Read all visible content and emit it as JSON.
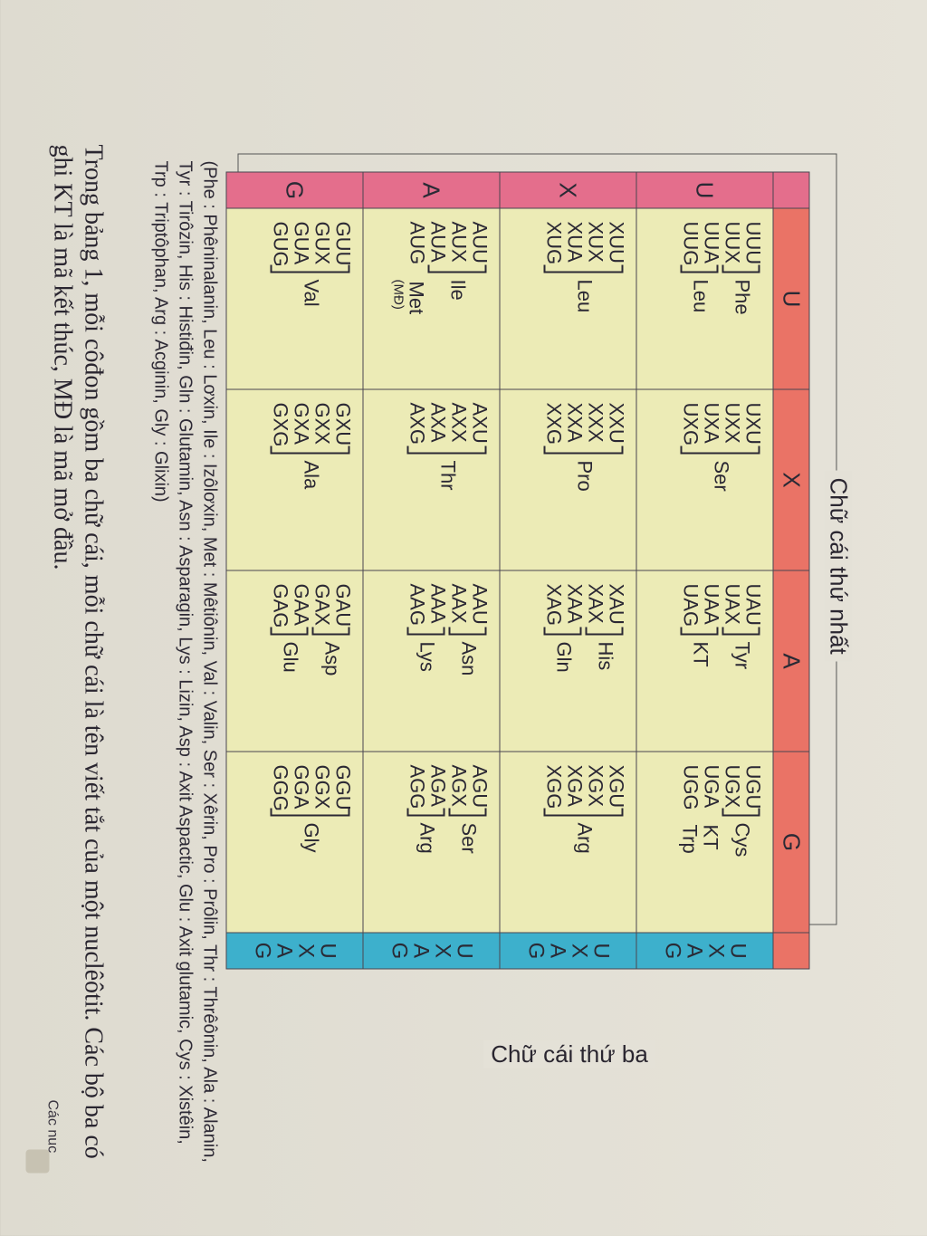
{
  "table": {
    "first_letter_title": "Chữ cái thứ nhất",
    "third_letter_title": "Chữ cái thứ ba",
    "second_letters": [
      "U",
      "X",
      "A",
      "G"
    ],
    "first_letters": [
      "U",
      "X",
      "A",
      "G"
    ],
    "third_letters": [
      "U",
      "X",
      "A",
      "G"
    ],
    "rows": [
      {
        "cells": [
          {
            "codons": [
              "UUU",
              "UUX",
              "UUA",
              "UUG"
            ],
            "groups": [
              {
                "label": "Phe"
              },
              {
                "label": "Leu"
              }
            ]
          },
          {
            "codons": [
              "UXU",
              "UXX",
              "UXA",
              "UXG"
            ],
            "groups": [
              {
                "label": "Ser"
              }
            ]
          },
          {
            "codons": [
              "UAU",
              "UAX",
              "UAA",
              "UAG"
            ],
            "groups": [
              {
                "label": "Tyr"
              },
              {
                "label": "KT"
              }
            ]
          },
          {
            "codons": [
              "UGU",
              "UGX",
              "UGA",
              "UGG"
            ],
            "groups": [
              {
                "label": "Cys"
              },
              {
                "label": "KT"
              },
              {
                "label": "Trp"
              }
            ]
          }
        ]
      },
      {
        "cells": [
          {
            "codons": [
              "XUU",
              "XUX",
              "XUA",
              "XUG"
            ],
            "groups": [
              {
                "label": "Leu"
              }
            ]
          },
          {
            "codons": [
              "XXU",
              "XXX",
              "XXA",
              "XXG"
            ],
            "groups": [
              {
                "label": "Pro"
              }
            ]
          },
          {
            "codons": [
              "XAU",
              "XAX",
              "XAA",
              "XAG"
            ],
            "groups": [
              {
                "label": "His"
              },
              {
                "label": "Gln"
              }
            ]
          },
          {
            "codons": [
              "XGU",
              "XGX",
              "XGA",
              "XGG"
            ],
            "groups": [
              {
                "label": "Arg"
              }
            ]
          }
        ]
      },
      {
        "cells": [
          {
            "codons": [
              "AUU",
              "AUX",
              "AUA",
              "AUG"
            ],
            "groups": [
              {
                "label": "Ile"
              },
              {
                "label": "Met",
                "sub": "(MĐ)"
              }
            ]
          },
          {
            "codons": [
              "AXU",
              "AXX",
              "AXA",
              "AXG"
            ],
            "groups": [
              {
                "label": "Thr"
              }
            ]
          },
          {
            "codons": [
              "AAU",
              "AAX",
              "AAA",
              "AAG"
            ],
            "groups": [
              {
                "label": "Asn"
              },
              {
                "label": "Lys"
              }
            ]
          },
          {
            "codons": [
              "AGU",
              "AGX",
              "AGA",
              "AGG"
            ],
            "groups": [
              {
                "label": "Ser"
              },
              {
                "label": "Arg"
              }
            ]
          }
        ]
      },
      {
        "cells": [
          {
            "codons": [
              "GUU",
              "GUX",
              "GUA",
              "GUG"
            ],
            "groups": [
              {
                "label": "Val"
              }
            ]
          },
          {
            "codons": [
              "GXU",
              "GXX",
              "GXA",
              "GXG"
            ],
            "groups": [
              {
                "label": "Ala"
              }
            ]
          },
          {
            "codons": [
              "GAU",
              "GAX",
              "GAA",
              "GAG"
            ],
            "groups": [
              {
                "label": "Asp"
              },
              {
                "label": "Glu"
              }
            ]
          },
          {
            "codons": [
              "GGU",
              "GGX",
              "GGA",
              "GGG"
            ],
            "groups": [
              {
                "label": "Gly"
              }
            ]
          }
        ]
      }
    ]
  },
  "caption": "(Phe : Phêninalanin, Leu : Lơxin, Ile : Izôlơxin, Met : Mêtiônin, Val : Valin, Ser : Xêrin, Pro : Prôlin, Thr : Thrêônin, Ala : Alanin, Tyr : Tirôzin, His : Histiđin, Gln : Glutamin, Asn : Asparagin, Lys : Lizin, Asp : Axit Aspactic, Glu : Axit glutamic, Cys : Xistêin, Trp : Triptôphan, Arg : Acginin, Gly : Glixin)",
  "paragraph": "Trong bảng 1, mỗi côđon gồm ba chữ cái, mỗi chữ cái là tên viết tắt của một nuclêôtit. Các bộ ba có ghi KT là mã kết thúc, MĐ là mã mở đầu.",
  "margin_text": "Các nuc",
  "colors": {
    "first_letter_band": "#e46e8c",
    "second_letter_band": "#ea7366",
    "third_letter_band": "#3db0cc",
    "cell_fill": "#ecebb6"
  }
}
